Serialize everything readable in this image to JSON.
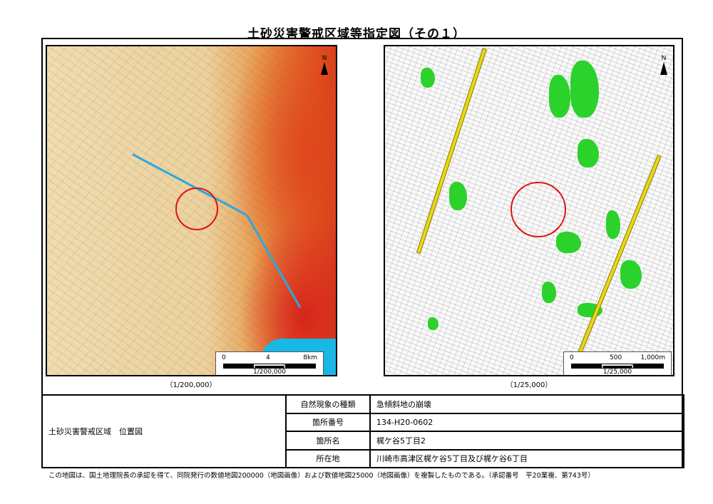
{
  "title": "土砂災害警戒区域等指定図（その１）",
  "left_map": {
    "caption": "（1/200,000）",
    "scale_ticks": [
      "0",
      "4",
      "8km"
    ],
    "scale_ratio": "1/200,000",
    "north_label": "N",
    "colors": {
      "base": "#ecd29d",
      "hazard": "#e2461c",
      "sea": "#19b7e6",
      "marker": "#e01010"
    }
  },
  "right_map": {
    "caption": "（1/25,000）",
    "scale_ticks": [
      "0",
      "500",
      "1,000m"
    ],
    "scale_ratio": "1/25,000",
    "north_label": "N",
    "colors": {
      "zone": "#2bd22b",
      "road": "#e8d81a",
      "marker": "#e01010"
    }
  },
  "info": {
    "section_label": "土砂災害警戒区域　位置図",
    "rows": [
      {
        "label": "自然現象の種類",
        "value": "急傾斜地の崩壊"
      },
      {
        "label": "箇所番号",
        "value": "134-H20-0602"
      },
      {
        "label": "箇所名",
        "value": "梶ケ谷5丁目2"
      },
      {
        "label": "所在地",
        "value": "川崎市高津区梶ケ谷5丁目及び梶ケ谷6丁目"
      }
    ]
  },
  "footer": "この地図は、国土地理院長の承認を得て、同院発行の数値地図200000（地図画像）および数値地図25000（地図画像）を複製したものである。（承認番号　平20業複、第743号）"
}
